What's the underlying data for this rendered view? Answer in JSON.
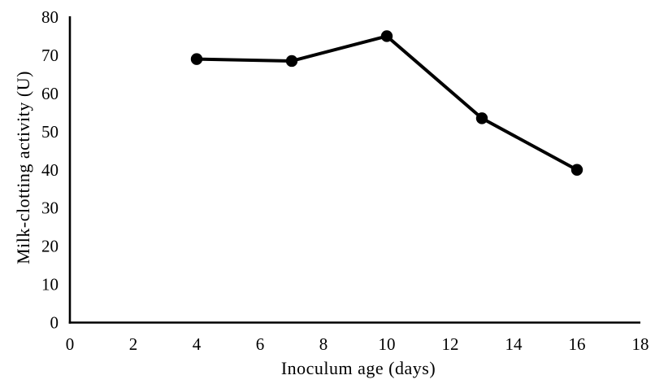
{
  "figure": {
    "background": "#ffffff",
    "axis_color": "#000000"
  },
  "chart_data": {
    "type": "line",
    "title": "",
    "xlabel": "Inoculum age (days)",
    "ylabel": "Milk-clotting activity (U)",
    "series": [
      {
        "name": "Milk-clotting activity",
        "x": [
          4,
          7,
          10,
          13,
          16
        ],
        "y": [
          69,
          68.5,
          75,
          53.5,
          40
        ]
      }
    ],
    "xlim": [
      0,
      18
    ],
    "ylim": [
      0,
      80
    ],
    "xticks": [
      0,
      2,
      4,
      6,
      8,
      10,
      12,
      14,
      16,
      18
    ],
    "yticks": [
      0,
      10,
      20,
      30,
      40,
      50,
      60,
      70,
      80
    ],
    "grid": false,
    "legend_position": "none",
    "line_color": "#000000",
    "line_width": 4,
    "marker": "filled-circle",
    "marker_color": "#000000",
    "marker_radius": 7.2
  }
}
